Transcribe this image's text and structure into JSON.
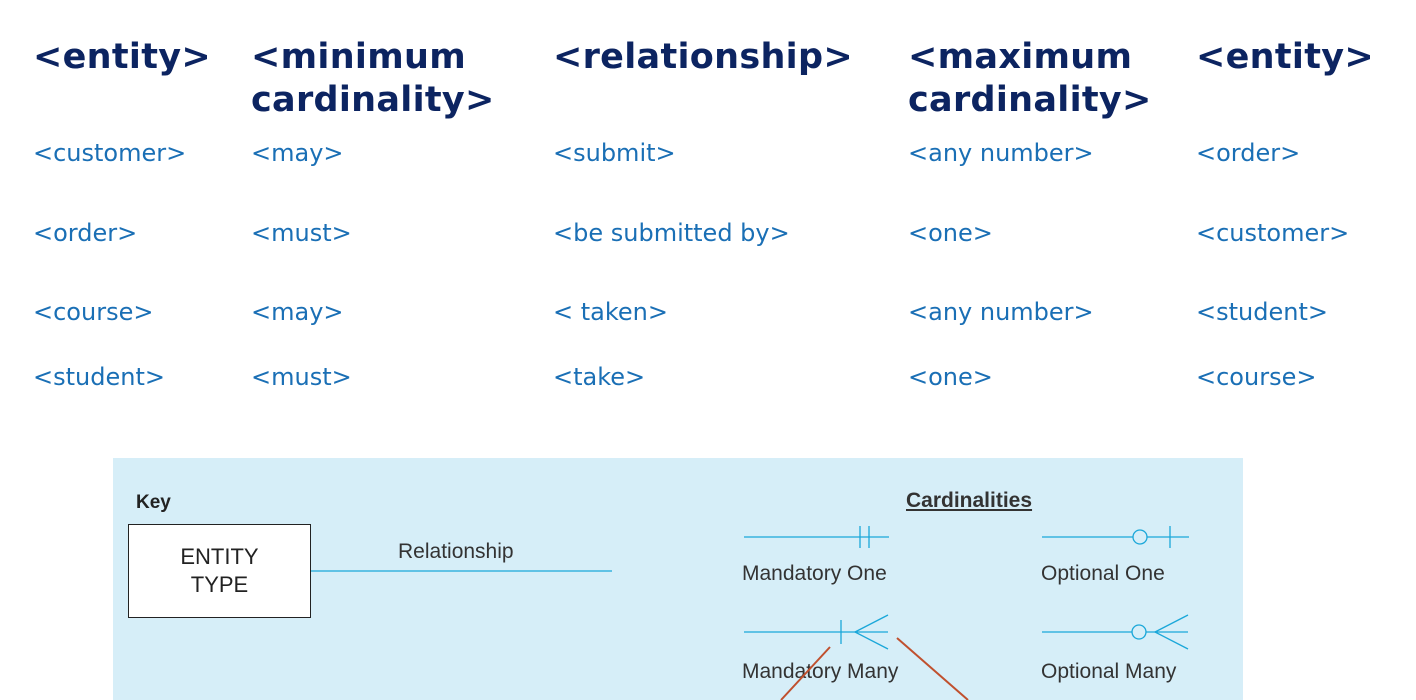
{
  "headers": [
    "<entity>",
    "<minimum cardinality>",
    "<relationship>",
    "<maximum cardinality>",
    "<entity>"
  ],
  "rows": [
    [
      "<customer>",
      "<may>",
      "<submit>",
      "<any number>",
      "<order>"
    ],
    [
      "<order>",
      "<must>",
      "<be submitted by>",
      "<one>",
      "<customer>"
    ],
    [
      "<course>",
      "<may>",
      "< taken>",
      "<any number>",
      "<student>"
    ],
    [
      "<student>",
      "<must>",
      "<take>",
      "<one>",
      "<course>"
    ]
  ],
  "key": {
    "label": "Key",
    "entity_type": "ENTITY TYPE",
    "relationship": "Relationship",
    "cardinalities_title": "Cardinalities",
    "cardinalities": [
      "Mandatory One",
      "Optional One",
      "Mandatory Many",
      "Optional Many"
    ]
  },
  "colors": {
    "header_text": "#0c2461",
    "cell_text": "#1a6fb5",
    "panel_bg": "#d6eef8",
    "notation_line": "#1aa7d9",
    "arrow": "#c0502e"
  }
}
